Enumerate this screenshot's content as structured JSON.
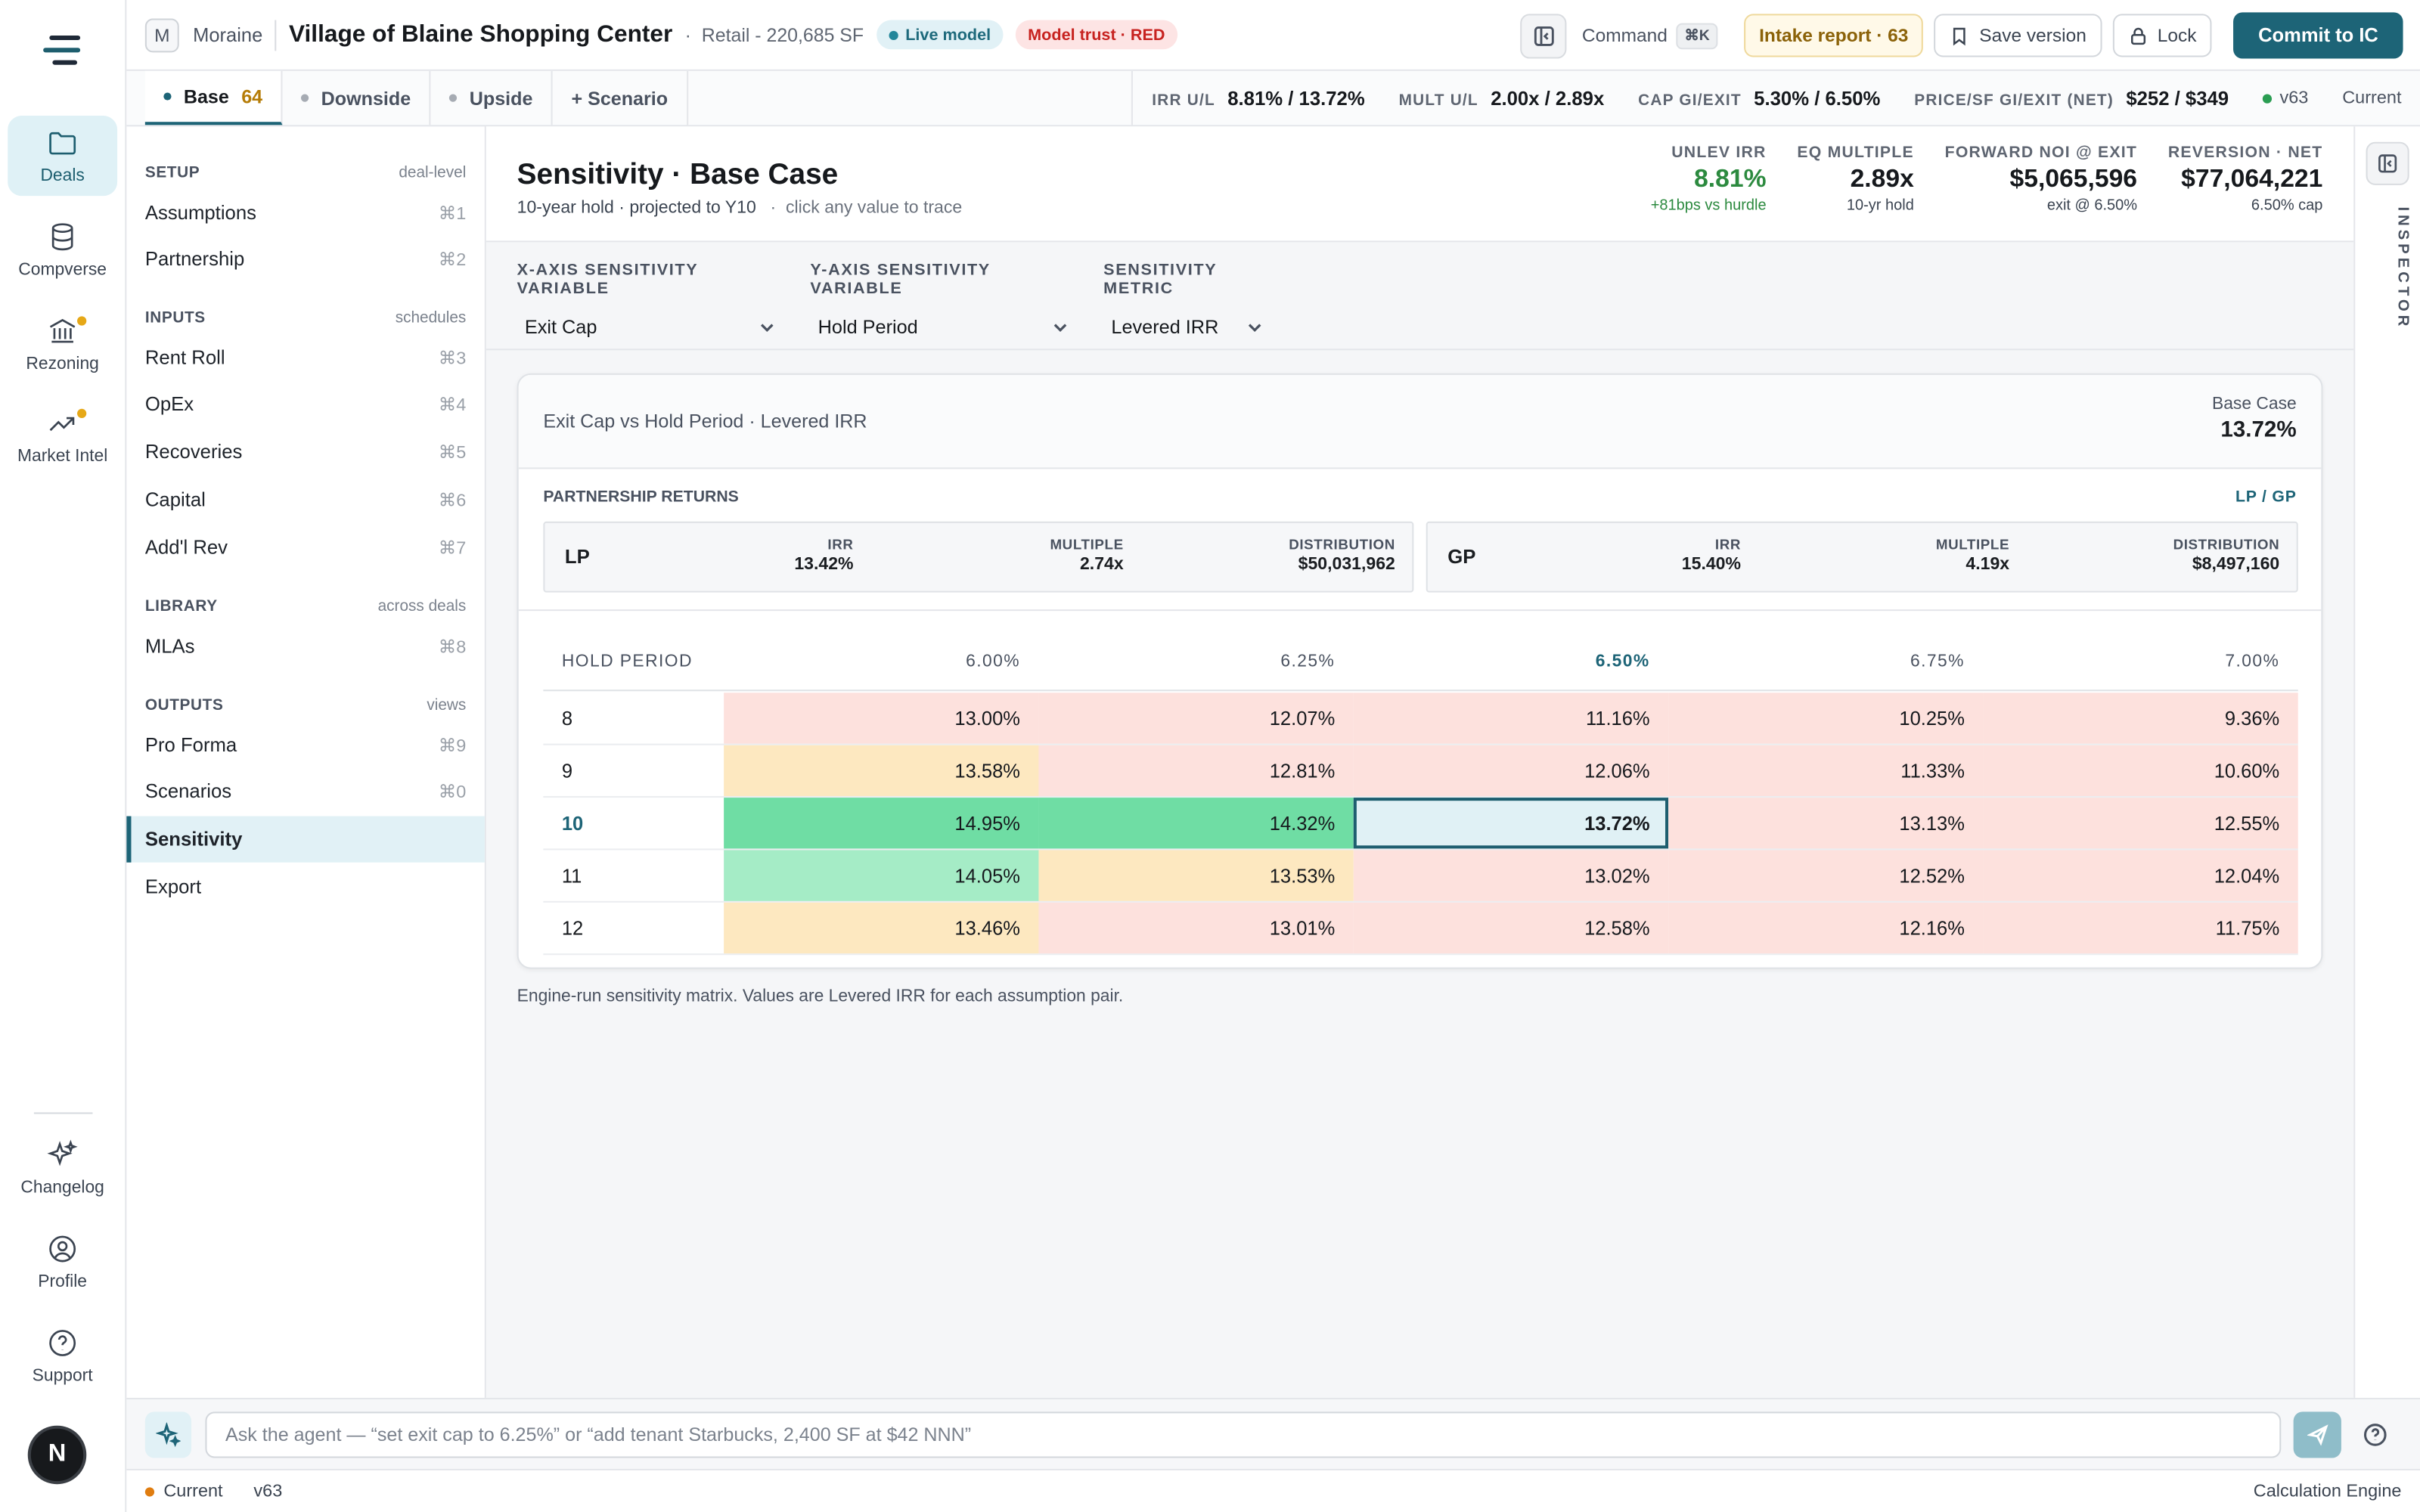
{
  "rail": {
    "items": [
      {
        "label": "Deals",
        "icon": "folder-icon"
      },
      {
        "label": "Compverse",
        "icon": "database-icon"
      },
      {
        "label": "Rezoning",
        "icon": "bank-icon"
      },
      {
        "label": "Market Intel",
        "icon": "trending-up-icon"
      }
    ],
    "bottom": [
      {
        "label": "Changelog",
        "icon": "sparkle-icon"
      },
      {
        "label": "Profile",
        "icon": "user-circle-icon"
      },
      {
        "label": "Support",
        "icon": "help-circle-icon"
      }
    ],
    "avatar_initial": "N"
  },
  "topbar": {
    "org_initial": "M",
    "org": "Moraine",
    "deal_name": "Village of Blaine Shopping Center",
    "deal_meta": "Retail - 220,685 SF",
    "live_label": "Live model",
    "trust_label": "Model trust · RED",
    "command_label": "Command",
    "command_kbd": "⌘K",
    "intake_label": "Intake report · 63",
    "save_label": "Save version",
    "lock_label": "Lock",
    "commit_label": "Commit to IC"
  },
  "tabs": {
    "items": [
      {
        "label": "Base",
        "count": "64"
      },
      {
        "label": "Downside"
      },
      {
        "label": "Upside"
      }
    ],
    "add_label": "+ Scenario",
    "metrics": [
      {
        "k": "IRR U/L",
        "v": "8.81% / 13.72%"
      },
      {
        "k": "MULT U/L",
        "v": "2.00x / 2.89x"
      },
      {
        "k": "CAP GI/EXIT",
        "v": "5.30% / 6.50%"
      },
      {
        "k": "PRICE/SF GI/EXIT (NET)",
        "v": "$252 / $349"
      }
    ],
    "version": "v63",
    "status": "Current"
  },
  "sidebar": {
    "sections": [
      {
        "name": "SETUP",
        "sub": "deal-level"
      },
      {
        "name": "INPUTS",
        "sub": "schedules"
      },
      {
        "name": "LIBRARY",
        "sub": "across deals"
      },
      {
        "name": "OUTPUTS",
        "sub": "views"
      }
    ],
    "items": [
      {
        "label": "Assumptions",
        "shortcut": "⌘1"
      },
      {
        "label": "Partnership",
        "shortcut": "⌘2"
      },
      {
        "label": "Rent Roll",
        "shortcut": "⌘3"
      },
      {
        "label": "OpEx",
        "shortcut": "⌘4"
      },
      {
        "label": "Recoveries",
        "shortcut": "⌘5"
      },
      {
        "label": "Capital",
        "shortcut": "⌘6"
      },
      {
        "label": "Add'l Rev",
        "shortcut": "⌘7"
      },
      {
        "label": "MLAs",
        "shortcut": "⌘8"
      },
      {
        "label": "Pro Forma",
        "shortcut": "⌘9"
      },
      {
        "label": "Scenarios",
        "shortcut": "⌘0"
      },
      {
        "label": "Sensitivity",
        "shortcut": ""
      },
      {
        "label": "Export",
        "shortcut": ""
      }
    ]
  },
  "main": {
    "title": "Sensitivity · Base Case",
    "subtitle": "10-year hold · projected to Y10",
    "hint": "click any value to trace",
    "kpis": [
      {
        "k": "UNLEV IRR",
        "v": "8.81%",
        "s": "+81bps vs hurdle"
      },
      {
        "k": "EQ MULTIPLE",
        "v": "2.89x",
        "s": "10-yr hold"
      },
      {
        "k": "FORWARD NOI @ EXIT",
        "v": "$5,065,596",
        "s": "exit @ 6.50%"
      },
      {
        "k": "REVERSION · NET",
        "v": "$77,064,221",
        "s": "6.50% cap"
      }
    ],
    "controls": [
      {
        "label": "X-AXIS SENSITIVITY VARIABLE",
        "value": "Exit Cap"
      },
      {
        "label": "Y-AXIS SENSITIVITY VARIABLE",
        "value": "Hold Period"
      },
      {
        "label": "SENSITIVITY METRIC",
        "value": "Levered IRR"
      }
    ],
    "card_title": "Exit Cap vs Hold Period · Levered IRR",
    "base_case_label": "Base Case",
    "base_case_value": "13.72%",
    "partnership": {
      "heading": "PARTNERSHIP RETURNS",
      "legend": "LP / GP",
      "boxes": [
        {
          "name": "LP",
          "irr_k": "IRR",
          "irr": "13.42%",
          "mult_k": "MULTIPLE",
          "mult": "2.74x",
          "dist_k": "DISTRIBUTION",
          "dist": "$50,031,962"
        },
        {
          "name": "GP",
          "irr_k": "IRR",
          "irr": "15.40%",
          "mult_k": "MULTIPLE",
          "mult": "4.19x",
          "dist_k": "DISTRIBUTION",
          "dist": "$8,497,160"
        }
      ]
    },
    "matrix": {
      "row_header": "HOLD PERIOD",
      "columns": [
        "6.00%",
        "6.25%",
        "6.50%",
        "6.75%",
        "7.00%"
      ],
      "rows": [
        {
          "label": "8",
          "cells": [
            "13.00%",
            "12.07%",
            "11.16%",
            "10.25%",
            "9.36%"
          ]
        },
        {
          "label": "9",
          "cells": [
            "13.58%",
            "12.81%",
            "12.06%",
            "11.33%",
            "10.60%"
          ]
        },
        {
          "label": "10",
          "cells": [
            "14.95%",
            "14.32%",
            "13.72%",
            "13.13%",
            "12.55%"
          ]
        },
        {
          "label": "11",
          "cells": [
            "14.05%",
            "13.53%",
            "13.02%",
            "12.52%",
            "12.04%"
          ]
        },
        {
          "label": "12",
          "cells": [
            "13.46%",
            "13.01%",
            "12.58%",
            "12.16%",
            "11.75%"
          ]
        }
      ]
    },
    "footnote": "Engine-run sensitivity matrix. Values are Levered IRR for each assumption pair."
  },
  "inspector": {
    "label": "INSPECTOR"
  },
  "agent": {
    "placeholder": "Ask the agent — “set exit cap to 6.25%” or “add tenant Starbucks, 2,400 SF at $42 NNN”"
  },
  "status": {
    "state": "Current",
    "version": "v63",
    "engine": "Calculation Engine"
  },
  "colors": {
    "accent": "#1d6477",
    "heat_green_dark": "#6fdda4",
    "heat_green_light": "#a5ecc6",
    "heat_yellow": "#fde8c0",
    "heat_red": "#fde1dd",
    "selected": "#e0f1f5"
  }
}
